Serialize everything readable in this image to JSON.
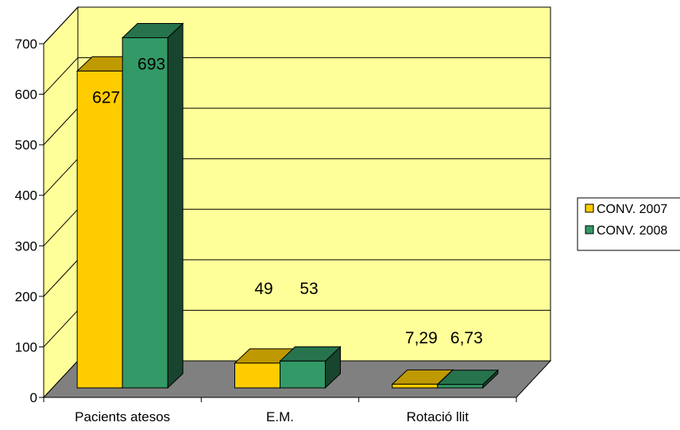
{
  "chart_data": {
    "type": "bar",
    "style": "3d-clustered-column",
    "categories": [
      "Pacients atesos",
      "E.M.",
      "Rotació llit"
    ],
    "series": [
      {
        "name": "CONV. 2007",
        "values": [
          627,
          49,
          7.29
        ],
        "labels": [
          "627",
          "49",
          "7,29"
        ],
        "color": "#FFCC00"
      },
      {
        "name": "CONV. 2008",
        "values": [
          693,
          53,
          6.73
        ],
        "labels": [
          "693",
          "53",
          "6,73"
        ],
        "color": "#339966"
      }
    ],
    "yticks": [
      "0",
      "100",
      "200",
      "300",
      "400",
      "500",
      "600",
      "700"
    ],
    "ylim": [
      0,
      700
    ],
    "grid": true,
    "legend_position": "right",
    "colors": {
      "wall": "#FFFF99",
      "floor": "#808080"
    }
  }
}
